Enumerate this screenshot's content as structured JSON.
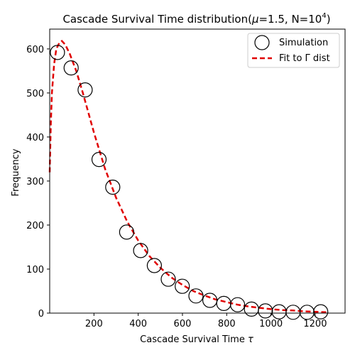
{
  "chart_data": {
    "type": "scatter",
    "title_main": "Cascade Survival Time distribution(",
    "title_mu": "μ",
    "title_mid": "=1.5, N=10",
    "title_exp": "4",
    "title_end": ")",
    "xlabel_main": "Cascade Survival Time ",
    "xlabel_sym": "τ",
    "ylabel": "Frequency",
    "xlim": [
      0,
      1335
    ],
    "ylim": [
      0,
      645
    ],
    "xticks": [
      200,
      400,
      600,
      800,
      1000,
      1200
    ],
    "yticks": [
      0,
      100,
      200,
      300,
      400,
      500,
      600
    ],
    "legend_position": "top-right",
    "grid": false,
    "series": [
      {
        "name": "Simulation",
        "marker": "open-circle",
        "color": "#000000",
        "x": [
          35,
          97,
          160,
          223,
          285,
          348,
          411,
          473,
          536,
          599,
          661,
          724,
          787,
          849,
          912,
          975,
          1037,
          1100,
          1163,
          1225
        ],
        "y": [
          592,
          557,
          507,
          349,
          286,
          184,
          142,
          108,
          77,
          61,
          39,
          29,
          22,
          19,
          9,
          5,
          3,
          2,
          2,
          3
        ]
      },
      {
        "name": "Fit to Γ dist",
        "style": "dashed",
        "color": "#e00000",
        "x": [
          0,
          5,
          10,
          20,
          30,
          45,
          55,
          70,
          90,
          120,
          150,
          200,
          250,
          300,
          350,
          400,
          450,
          500,
          550,
          600,
          650,
          700,
          750,
          800,
          850,
          900,
          950,
          1000,
          1050,
          1100,
          1150,
          1200,
          1250
        ],
        "y": [
          320,
          430,
          500,
          565,
          600,
          615,
          618,
          610,
          590,
          550,
          500,
          410,
          328,
          262,
          208,
          165,
          130,
          103,
          81,
          64,
          50,
          40,
          31,
          25,
          19,
          15,
          12,
          9,
          7,
          6,
          4,
          3,
          2
        ]
      }
    ]
  }
}
